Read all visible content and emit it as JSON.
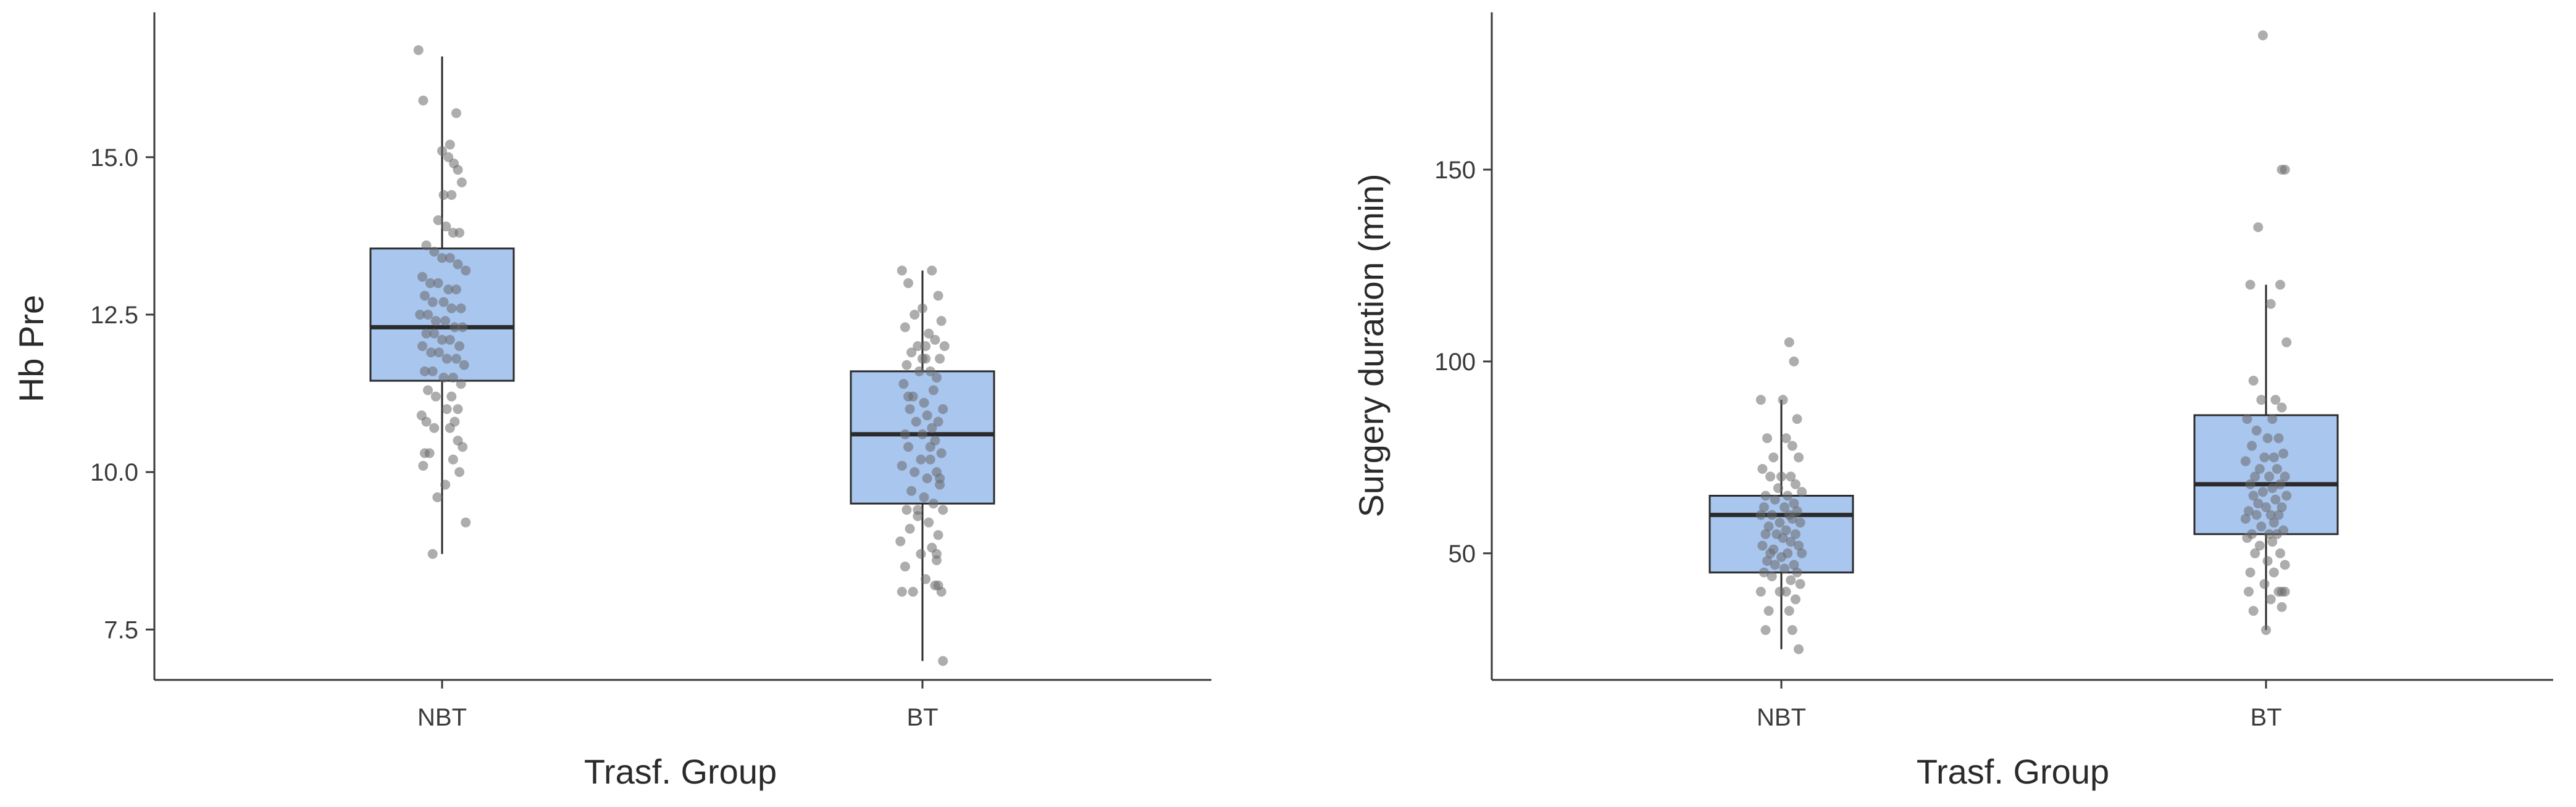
{
  "colors": {
    "box_fill": "#a9c6ef",
    "box_stroke": "#2b2b2b",
    "median": "#2b2b2b",
    "point": "#6a6a6a",
    "axis": "#3a3a3a"
  },
  "chart_data": [
    {
      "type": "box",
      "title": "",
      "xlabel": "Trasf. Group",
      "ylabel": "Hb Pre",
      "categories": [
        "NBT",
        "BT"
      ],
      "ylim": [
        6.7,
        17.3
      ],
      "yticks": [
        "7.5",
        "10.0",
        "12.5",
        "15.0"
      ],
      "boxes": [
        {
          "category": "NBT",
          "whisker_low": 8.7,
          "q1": 11.45,
          "median": 12.3,
          "q3": 13.55,
          "whisker_high": 16.6
        },
        {
          "category": "BT",
          "whisker_low": 7.0,
          "q1": 9.5,
          "median": 10.6,
          "q3": 11.6,
          "whisker_high": 13.2
        }
      ],
      "points": [
        {
          "category": "NBT",
          "jitter": [
            -0.3,
            -0.24,
            0.18,
            0.1,
            0.0,
            0.08,
            0.15,
            0.2,
            0.25,
            0.12,
            -0.05,
            0.05,
            0.22,
            0.14,
            -0.2,
            -0.1,
            0.0,
            0.1,
            0.2,
            0.3,
            -0.25,
            -0.15,
            -0.05,
            0.08,
            0.18,
            -0.22,
            -0.12,
            0.02,
            0.12,
            0.24,
            -0.28,
            -0.18,
            -0.08,
            0.04,
            0.16,
            0.26,
            -0.2,
            -0.1,
            0.0,
            0.1,
            0.22,
            -0.25,
            -0.14,
            -0.04,
            0.06,
            0.18,
            0.28,
            -0.22,
            -0.12,
            0.02,
            0.14,
            0.24,
            -0.18,
            -0.08,
            0.06,
            0.2,
            -0.26,
            -0.2,
            -0.1,
            0.1,
            0.2,
            0.26,
            -0.16,
            0.14,
            0.22,
            -0.22,
            -0.24,
            0.04,
            -0.06,
            0.12,
            0.16,
            0.3,
            -0.12,
            0.02
          ],
          "values": [
            16.7,
            15.9,
            15.7,
            15.2,
            15.1,
            15.0,
            14.9,
            14.8,
            14.6,
            14.4,
            14.0,
            13.9,
            13.8,
            13.8,
            13.6,
            13.5,
            13.4,
            13.4,
            13.3,
            13.2,
            13.1,
            13.0,
            13.0,
            12.9,
            12.9,
            12.8,
            12.7,
            12.7,
            12.6,
            12.6,
            12.5,
            12.5,
            12.4,
            12.4,
            12.3,
            12.3,
            12.2,
            12.2,
            12.1,
            12.1,
            12.0,
            12.0,
            11.9,
            11.9,
            11.8,
            11.8,
            11.7,
            11.6,
            11.6,
            11.5,
            11.5,
            11.4,
            11.3,
            11.2,
            11.0,
            11.0,
            10.9,
            10.8,
            10.7,
            10.7,
            10.5,
            10.4,
            10.3,
            10.2,
            10.0,
            10.3,
            10.1,
            9.8,
            9.6,
            11.2,
            10.8,
            9.2,
            8.7,
            14.4
          ]
        },
        {
          "category": "BT",
          "jitter": [
            -0.26,
            0.12,
            -0.18,
            0.2,
            0.0,
            -0.1,
            0.24,
            -0.22,
            0.08,
            0.16,
            -0.06,
            0.28,
            -0.14,
            0.04,
            0.22,
            -0.2,
            0.1,
            -0.04,
            0.18,
            -0.24,
            0.14,
            -0.12,
            0.02,
            0.26,
            -0.16,
            0.06,
            0.2,
            -0.08,
            0.12,
            -0.22,
            0.0,
            0.16,
            -0.18,
            0.24,
            -0.02,
            0.1,
            -0.26,
            0.18,
            -0.1,
            0.06,
            0.22,
            -0.14,
            0.02,
            0.14,
            -0.2,
            0.26,
            -0.06,
            0.08,
            -0.16,
            0.2,
            -0.28,
            0.12,
            -0.02,
            0.18,
            -0.22,
            0.04,
            0.16,
            0.24,
            -0.12,
            0.0,
            0.1,
            0.22,
            -0.18,
            0.18,
            0.2,
            -0.26,
            0.04,
            0.26,
            -0.06
          ],
          "values": [
            13.2,
            13.2,
            13.0,
            12.8,
            12.6,
            12.5,
            12.4,
            12.3,
            12.2,
            12.1,
            12.0,
            12.0,
            11.9,
            11.8,
            11.8,
            11.7,
            11.6,
            11.6,
            11.5,
            11.4,
            11.3,
            11.2,
            11.1,
            11.0,
            11.0,
            10.9,
            10.8,
            10.8,
            10.7,
            10.6,
            10.6,
            10.5,
            10.4,
            10.3,
            10.2,
            10.2,
            10.1,
            10.0,
            10.0,
            9.9,
            9.8,
            9.7,
            9.6,
            9.5,
            9.4,
            9.4,
            9.3,
            9.2,
            9.1,
            9.0,
            8.9,
            8.8,
            8.7,
            8.6,
            8.5,
            8.3,
            8.2,
            8.1,
            8.1,
            11.8,
            10.4,
            9.9,
            11.2,
            8.7,
            8.2,
            8.1,
            12.0,
            7.0,
            9.4
          ]
        }
      ]
    },
    {
      "type": "box",
      "title": "",
      "xlabel": "Trasf. Group",
      "ylabel": "Surgery duration (min)",
      "categories": [
        "NBT",
        "BT"
      ],
      "ylim": [
        17,
        191
      ],
      "yticks": [
        "50",
        "100",
        "150"
      ],
      "boxes": [
        {
          "category": "NBT",
          "whisker_low": 25,
          "q1": 45,
          "median": 60,
          "q3": 65,
          "whisker_high": 90
        },
        {
          "category": "BT",
          "whisker_low": 30,
          "q1": 55,
          "median": 68,
          "q3": 86,
          "whisker_high": 120
        }
      ],
      "points": [
        {
          "category": "NBT",
          "jitter": [
            0.1,
            0.16,
            -0.26,
            0.02,
            0.2,
            -0.18,
            0.06,
            0.14,
            -0.1,
            0.22,
            -0.24,
            0.0,
            0.12,
            -0.14,
            0.18,
            -0.04,
            0.26,
            -0.2,
            0.08,
            -0.08,
            0.16,
            -0.22,
            0.04,
            0.2,
            -0.12,
            0.1,
            -0.26,
            0.14,
            -0.02,
            0.24,
            -0.16,
            0.06,
            -0.06,
            0.18,
            -0.2,
            0.02,
            0.12,
            -0.24,
            0.22,
            -0.1,
            0.08,
            -0.14,
            0.26,
            0.0,
            -0.18,
            0.16,
            -0.08,
            0.04,
            -0.22,
            0.2,
            -0.12,
            0.12,
            0.24,
            -0.26,
            0.06,
            -0.02,
            0.18,
            -0.16,
            0.1,
            -0.2,
            0.14,
            0.22
          ],
          "values": [
            105,
            100,
            90,
            90,
            85,
            80,
            80,
            78,
            75,
            75,
            72,
            70,
            70,
            70,
            68,
            67,
            66,
            65,
            65,
            64,
            63,
            62,
            62,
            61,
            60,
            60,
            60,
            59,
            58,
            58,
            57,
            56,
            55,
            55,
            55,
            54,
            53,
            52,
            52,
            51,
            50,
            50,
            50,
            49,
            48,
            47,
            47,
            46,
            45,
            45,
            44,
            43,
            42,
            40,
            40,
            40,
            38,
            35,
            35,
            30,
            30,
            25
          ]
        },
        {
          "category": "BT",
          "jitter": [
            -0.04,
            0.24,
            0.2,
            -0.1,
            0.18,
            -0.2,
            0.06,
            0.26,
            -0.16,
            0.12,
            -0.06,
            0.2,
            -0.24,
            0.08,
            -0.12,
            0.16,
            0.02,
            -0.18,
            0.22,
            -0.02,
            0.1,
            -0.26,
            0.14,
            -0.08,
            0.24,
            -0.14,
            0.04,
            0.18,
            -0.2,
            0.08,
            -0.04,
            0.26,
            -0.16,
            0.12,
            -0.1,
            0.0,
            0.2,
            -0.22,
            0.06,
            -0.12,
            0.16,
            -0.26,
            0.1,
            -0.06,
            0.22,
            -0.18,
            0.04,
            0.14,
            -0.24,
            0.08,
            -0.08,
            0.18,
            -0.14,
            0.02,
            0.24,
            -0.2,
            0.1,
            -0.02,
            0.16,
            -0.22,
            0.06,
            0.2,
            0.24,
            -0.16,
            0.0,
            0.2
          ],
          "values": [
            185,
            150,
            150,
            135,
            120,
            120,
            115,
            105,
            95,
            90,
            90,
            88,
            85,
            85,
            82,
            80,
            80,
            78,
            76,
            75,
            75,
            74,
            72,
            72,
            70,
            70,
            70,
            68,
            68,
            67,
            66,
            65,
            65,
            64,
            63,
            62,
            62,
            61,
            60,
            60,
            60,
            59,
            58,
            57,
            56,
            55,
            55,
            55,
            54,
            53,
            52,
            50,
            50,
            48,
            47,
            45,
            45,
            42,
            40,
            40,
            38,
            36,
            40,
            35,
            30,
            40
          ]
        }
      ]
    }
  ]
}
